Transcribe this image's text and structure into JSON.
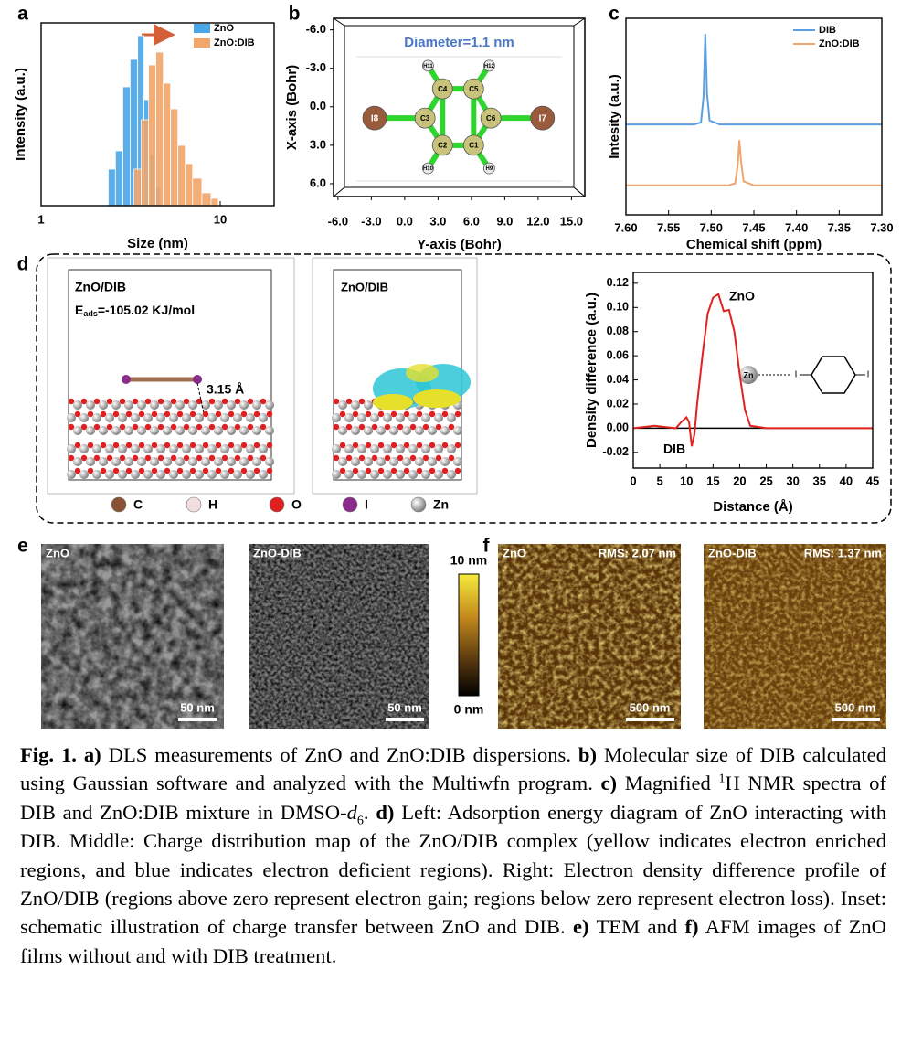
{
  "panel_labels": [
    "a",
    "b",
    "c",
    "d",
    "e",
    "f"
  ],
  "chart_data": [
    {
      "type": "histogram",
      "xlabel": "Size (nm)",
      "ylabel": "Intensity (a.u.)",
      "xlog": true,
      "xlim": [
        1,
        20
      ],
      "xticks": [
        1,
        10
      ],
      "ylim": [
        0,
        100
      ],
      "series": [
        {
          "name": "ZnO",
          "color": "#4aa6e6",
          "bins": [
            2.37,
            2.6,
            2.86,
            3.14,
            3.46,
            3.75,
            4.03,
            4.32,
            4.64
          ],
          "values": [
            20,
            30,
            65,
            80,
            93,
            58,
            28,
            10
          ]
        },
        {
          "name": "ZnO:DIB",
          "color": "#f2a66a",
          "bins": [
            3.3,
            3.62,
            3.98,
            4.37,
            4.81,
            5.28,
            5.8,
            6.38,
            7.01,
            7.9,
            8.89,
            9.76
          ],
          "values": [
            20,
            47,
            77,
            84,
            67,
            53,
            33,
            23,
            15,
            7,
            4
          ]
        }
      ]
    },
    {
      "type": "molecule",
      "title": "Diameter=1.1 nm",
      "xlabel": "Y-axis (Bohr)",
      "ylabel": "X-axis (Bohr)",
      "xlim": [
        -6.4,
        16.2
      ],
      "ylim": [
        -6.9,
        7.0
      ],
      "xticks": [
        {
          "value": -6,
          "label": "-6.0"
        },
        {
          "value": -3,
          "label": "-3.0"
        },
        {
          "value": 0,
          "label": "0.0"
        },
        {
          "value": 3,
          "label": "3.0"
        },
        {
          "value": 6,
          "label": "6.0"
        },
        {
          "value": 9,
          "label": "9.0"
        },
        {
          "value": 12,
          "label": "12.0"
        },
        {
          "value": 15,
          "label": "15.0"
        }
      ],
      "yticks": [
        {
          "value": -6,
          "label": "-6.0"
        },
        {
          "value": -3,
          "label": "-3.0"
        },
        {
          "value": 0,
          "label": "0.0"
        },
        {
          "value": 3,
          "label": "3.0"
        },
        {
          "value": 6,
          "label": "6.0"
        }
      ],
      "atoms": [
        {
          "label": "I8",
          "x": -2.7,
          "y": 0.88
        },
        {
          "label": "C3",
          "x": 1.83,
          "y": 0.88
        },
        {
          "label": "C4",
          "x": 3.4,
          "y": -1.4
        },
        {
          "label": "C5",
          "x": 6.2,
          "y": -1.4
        },
        {
          "label": "C6",
          "x": 7.75,
          "y": 0.88
        },
        {
          "label": "C2",
          "x": 3.4,
          "y": 3.0
        },
        {
          "label": "C1",
          "x": 6.2,
          "y": 3.0
        },
        {
          "label": "I7",
          "x": 12.4,
          "y": 0.88
        },
        {
          "label": "H11",
          "x": 2.1,
          "y": -3.2
        },
        {
          "label": "H12",
          "x": 7.6,
          "y": -3.2
        },
        {
          "label": "H10",
          "x": 2.1,
          "y": 4.8
        },
        {
          "label": "H9",
          "x": 7.6,
          "y": 4.8
        }
      ]
    },
    {
      "type": "line",
      "xlabel": "Chemical shift (ppm)",
      "ylabel": "Intesity (a.u.)",
      "xlim": [
        7.6,
        7.3
      ],
      "xticks": [
        {
          "value": 7.6,
          "label": "7.60"
        },
        {
          "value": 7.55,
          "label": "7.55"
        },
        {
          "value": 7.5,
          "label": "7.50"
        },
        {
          "value": 7.45,
          "label": "7.45"
        },
        {
          "value": 7.4,
          "label": "7.40"
        },
        {
          "value": 7.35,
          "label": "7.35"
        },
        {
          "value": 7.3,
          "label": "7.30"
        }
      ],
      "ylim": [
        0,
        100
      ],
      "x": [
        7.6,
        7.55,
        7.52,
        7.512,
        7.509,
        7.507,
        7.505,
        7.502,
        7.49,
        7.48,
        7.472,
        7.469,
        7.467,
        7.465,
        7.462,
        7.45,
        7.4,
        7.3
      ],
      "series": [
        {
          "name": "DIB",
          "color": "#5b9fe3",
          "values": [
            46,
            46,
            46,
            47,
            60,
            92,
            62,
            48,
            46,
            46,
            46,
            46,
            46,
            46,
            46,
            46,
            46,
            46
          ]
        },
        {
          "name": "ZnO:DIB",
          "color": "#f0a46e",
          "values": [
            15,
            15,
            15,
            15,
            15,
            15,
            15,
            15,
            15,
            15,
            16,
            25,
            38,
            27,
            17,
            15,
            15,
            15
          ]
        }
      ]
    },
    {
      "type": "line",
      "xlabel": "Distance (Å)",
      "ylabel": "Density difference (a.u.)",
      "xlim": [
        0,
        45
      ],
      "xticks": [
        0,
        5,
        10,
        15,
        20,
        25,
        30,
        35,
        40,
        45
      ],
      "ylim": [
        -0.033,
        0.129
      ],
      "yticks": [
        {
          "value": -0.02,
          "label": "-0.02"
        },
        {
          "value": 0,
          "label": "0.00"
        },
        {
          "value": 0.02,
          "label": "0.02"
        },
        {
          "value": 0.04,
          "label": "0.04"
        },
        {
          "value": 0.06,
          "label": "0.06"
        },
        {
          "value": 0.08,
          "label": "0.08"
        },
        {
          "value": 0.1,
          "label": "0.10"
        },
        {
          "value": 0.12,
          "label": "0.12"
        }
      ],
      "x": [
        0,
        2,
        4,
        6,
        8,
        9,
        10,
        10.5,
        11,
        11.5,
        12,
        13,
        14,
        15,
        16,
        17,
        18,
        19,
        20,
        21,
        22,
        25,
        45
      ],
      "series": [
        {
          "color": "#e3221f",
          "values": [
            0,
            0.001,
            0.002,
            0.001,
            0,
            0.005,
            0.009,
            0.005,
            -0.015,
            -0.005,
            0.02,
            0.06,
            0.095,
            0.108,
            0.111,
            0.097,
            0.098,
            0.08,
            0.045,
            0.015,
            0.002,
            0,
            0
          ]
        }
      ],
      "annotations": [
        "ZnO",
        "DIB"
      ],
      "inset": [
        "Zn",
        "I",
        "I"
      ]
    }
  ],
  "structures": {
    "left_title": "ZnO/DIB",
    "energy_symbol": "E",
    "energy_subscript": "ads",
    "energy_value": "=-105.02 KJ/mol",
    "distance": "3.15 Å",
    "middle_title": "ZnO/DIB",
    "legend": [
      "C",
      "H",
      "O",
      "I",
      "Zn"
    ]
  },
  "images": {
    "tem": [
      {
        "label": "ZnO",
        "scale": "50 nm"
      },
      {
        "label": "ZnO-DIB",
        "scale": "50 nm"
      }
    ],
    "colorbar": [
      "10 nm",
      "0 nm"
    ],
    "afm": [
      {
        "label": "ZnO",
        "rms": "RMS: 2.07 nm",
        "scale": "500 nm"
      },
      {
        "label": "ZnO-DIB",
        "rms": "RMS: 1.37 nm",
        "scale": "500 nm"
      }
    ]
  },
  "caption": [
    "Fig. 1. a)",
    " DLS measurements of ZnO and ZnO:DIB dispersions. ",
    "b)",
    " Molecular size of DIB calculated using Gaussian software and analyzed with the Multiwfn program. ",
    "c)",
    " Magnified ",
    "1",
    "H NMR spectra of DIB and ZnO:DIB mixture in DMSO-",
    "d",
    "6",
    ". ",
    "d)",
    " Left: Adsorption energy diagram of ZnO interacting with DIB. Middle: Charge distribution map of the ZnO/DIB complex (yellow indicates electron enriched regions, and blue indicates electron deficient regions). Right: Electron density difference profile of ZnO/DIB (regions above zero represent electron gain; regions below zero represent electron loss). Inset: schematic illustration of charge transfer between ZnO and DIB. ",
    "e)",
    " TEM and ",
    "f)",
    " AFM images of ZnO films without and with DIB treatment."
  ]
}
